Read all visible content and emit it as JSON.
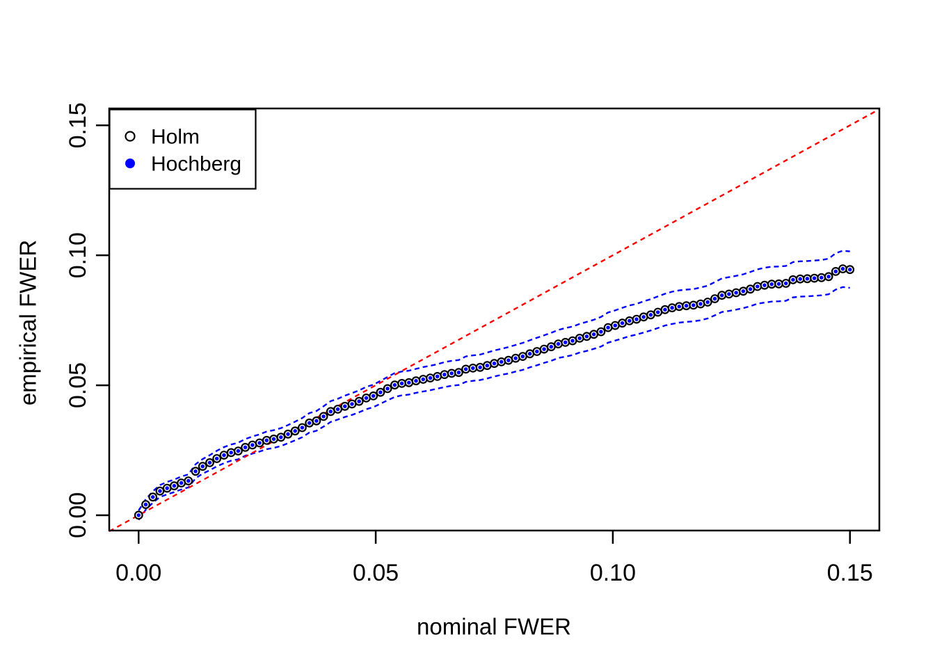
{
  "chart_data": {
    "type": "scatter",
    "title": "",
    "xlabel": "nominal FWER",
    "ylabel": "empirical FWER",
    "grid": false,
    "background_color": "#FFFFFF",
    "axis_color": "#000000",
    "x_start": 0,
    "x_step": 0.0015,
    "n_points": 101,
    "xlim": [
      -0.0062,
      0.1562
    ],
    "ylim": [
      -0.0059,
      0.1565
    ],
    "x_ticks": {
      "values": [
        0,
        0.05,
        0.1,
        0.15
      ],
      "labels": [
        "0.00",
        "0.05",
        "0.10",
        "0.15"
      ]
    },
    "y_ticks": {
      "values": [
        0,
        0.05,
        0.1,
        0.15
      ],
      "labels": [
        "0.00",
        "0.05",
        "0.10",
        "0.15"
      ]
    },
    "series": [
      {
        "name": "Holm",
        "marker": "open-circle",
        "color": "#000000",
        "values": [
          0.0,
          0.0041,
          0.007,
          0.0093,
          0.0104,
          0.0113,
          0.0124,
          0.0132,
          0.0169,
          0.0188,
          0.0202,
          0.0218,
          0.0231,
          0.0241,
          0.0247,
          0.0261,
          0.027,
          0.0278,
          0.0288,
          0.0293,
          0.03,
          0.0312,
          0.0324,
          0.0337,
          0.0355,
          0.0363,
          0.038,
          0.0399,
          0.0408,
          0.0419,
          0.0428,
          0.0438,
          0.0451,
          0.0459,
          0.0473,
          0.0487,
          0.0501,
          0.0507,
          0.051,
          0.0517,
          0.0523,
          0.0528,
          0.0534,
          0.0541,
          0.0546,
          0.0549,
          0.0562,
          0.0566,
          0.0569,
          0.0576,
          0.0584,
          0.059,
          0.0596,
          0.0604,
          0.0611,
          0.0621,
          0.063,
          0.0639,
          0.0648,
          0.0659,
          0.0665,
          0.0671,
          0.0681,
          0.0688,
          0.0696,
          0.0706,
          0.0722,
          0.073,
          0.0739,
          0.0748,
          0.0754,
          0.0763,
          0.0771,
          0.0781,
          0.0791,
          0.0798,
          0.0803,
          0.0806,
          0.0808,
          0.0813,
          0.082,
          0.0833,
          0.0846,
          0.0851,
          0.0856,
          0.0862,
          0.087,
          0.088,
          0.0885,
          0.0889,
          0.089,
          0.0892,
          0.0906,
          0.0909,
          0.091,
          0.0912,
          0.0914,
          0.0918,
          0.0938,
          0.0948,
          0.0945
        ]
      },
      {
        "name": "Hochberg",
        "marker": "filled-circle",
        "color": "#0000FF",
        "identical_to": "Holm",
        "values": [
          0.0,
          0.0041,
          0.007,
          0.0093,
          0.0104,
          0.0113,
          0.0124,
          0.0132,
          0.0169,
          0.0188,
          0.0202,
          0.0218,
          0.0231,
          0.0241,
          0.0247,
          0.0261,
          0.027,
          0.0278,
          0.0288,
          0.0293,
          0.03,
          0.0312,
          0.0324,
          0.0337,
          0.0355,
          0.0363,
          0.038,
          0.0399,
          0.0408,
          0.0419,
          0.0428,
          0.0438,
          0.0451,
          0.0459,
          0.0473,
          0.0487,
          0.0501,
          0.0507,
          0.051,
          0.0517,
          0.0523,
          0.0528,
          0.0534,
          0.0541,
          0.0546,
          0.0549,
          0.0562,
          0.0566,
          0.0569,
          0.0576,
          0.0584,
          0.059,
          0.0596,
          0.0604,
          0.0611,
          0.0621,
          0.063,
          0.0639,
          0.0648,
          0.0659,
          0.0665,
          0.0671,
          0.0681,
          0.0688,
          0.0696,
          0.0706,
          0.0722,
          0.073,
          0.0739,
          0.0748,
          0.0754,
          0.0763,
          0.0771,
          0.0781,
          0.0791,
          0.0798,
          0.0803,
          0.0806,
          0.0808,
          0.0813,
          0.082,
          0.0833,
          0.0846,
          0.0851,
          0.0856,
          0.0862,
          0.087,
          0.088,
          0.0885,
          0.0889,
          0.089,
          0.0892,
          0.0906,
          0.0909,
          0.091,
          0.0912,
          0.0914,
          0.0918,
          0.0938,
          0.0948,
          0.0945
        ]
      }
    ],
    "confidence_band": {
      "color": "#0000FF",
      "style": "dashed",
      "upper": [
        0.0018,
        0.0061,
        0.0092,
        0.0116,
        0.0128,
        0.0137,
        0.0149,
        0.0157,
        0.0196,
        0.0216,
        0.0231,
        0.0248,
        0.0262,
        0.0272,
        0.0279,
        0.0293,
        0.0303,
        0.0311,
        0.0322,
        0.0327,
        0.0335,
        0.0347,
        0.036,
        0.0374,
        0.0393,
        0.0401,
        0.0419,
        0.0439,
        0.0448,
        0.046,
        0.047,
        0.048,
        0.0494,
        0.0502,
        0.0517,
        0.0532,
        0.0547,
        0.0553,
        0.0556,
        0.0563,
        0.057,
        0.0575,
        0.0581,
        0.0589,
        0.0594,
        0.0597,
        0.0611,
        0.0615,
        0.0618,
        0.0626,
        0.0634,
        0.064,
        0.0647,
        0.0655,
        0.0663,
        0.0673,
        0.0683,
        0.0692,
        0.0702,
        0.0713,
        0.072,
        0.0726,
        0.0736,
        0.0744,
        0.0752,
        0.0763,
        0.078,
        0.0788,
        0.0798,
        0.0807,
        0.0813,
        0.0823,
        0.0831,
        0.0842,
        0.0852,
        0.086,
        0.0865,
        0.0868,
        0.087,
        0.0876,
        0.0883,
        0.0897,
        0.0911,
        0.0916,
        0.0921,
        0.0927,
        0.0936,
        0.0946,
        0.0952,
        0.0956,
        0.0957,
        0.0959,
        0.0974,
        0.0977,
        0.0978,
        0.098,
        0.0982,
        0.0987,
        0.1008,
        0.1018,
        0.1015
      ],
      "lower": [
        -0.0018,
        0.0021,
        0.0048,
        0.007,
        0.008,
        0.0089,
        0.0099,
        0.0107,
        0.0142,
        0.016,
        0.0173,
        0.0188,
        0.02,
        0.021,
        0.0215,
        0.0229,
        0.0237,
        0.0245,
        0.0254,
        0.0259,
        0.0266,
        0.0277,
        0.0288,
        0.03,
        0.0318,
        0.0325,
        0.0341,
        0.0359,
        0.0368,
        0.0378,
        0.0386,
        0.0396,
        0.0408,
        0.0416,
        0.0429,
        0.0442,
        0.0455,
        0.0461,
        0.0464,
        0.0471,
        0.0476,
        0.0481,
        0.0487,
        0.0493,
        0.0498,
        0.0501,
        0.0513,
        0.0517,
        0.052,
        0.0526,
        0.0534,
        0.054,
        0.0545,
        0.0553,
        0.0559,
        0.0569,
        0.0577,
        0.0586,
        0.0594,
        0.0605,
        0.061,
        0.0616,
        0.0626,
        0.0632,
        0.064,
        0.0649,
        0.0664,
        0.0672,
        0.068,
        0.0689,
        0.0695,
        0.0703,
        0.0711,
        0.072,
        0.073,
        0.0736,
        0.0741,
        0.0744,
        0.0746,
        0.075,
        0.0757,
        0.0769,
        0.0782,
        0.0786,
        0.0791,
        0.0797,
        0.0804,
        0.0814,
        0.0818,
        0.0822,
        0.0823,
        0.0825,
        0.0838,
        0.0841,
        0.0842,
        0.0844,
        0.0846,
        0.085,
        0.0868,
        0.0878,
        0.0875
      ]
    },
    "reference_line": {
      "name": "identity y = x",
      "color": "#FF0000",
      "style": "dashed",
      "from": [
        -0.0062,
        -0.0062
      ],
      "to": [
        0.1562,
        0.1562
      ]
    },
    "legend": {
      "position": "top-left",
      "items": [
        {
          "label": "Holm",
          "marker": "open-circle",
          "color": "#000000"
        },
        {
          "label": "Hochberg",
          "marker": "filled-circle",
          "color": "#0000FF"
        }
      ]
    }
  }
}
